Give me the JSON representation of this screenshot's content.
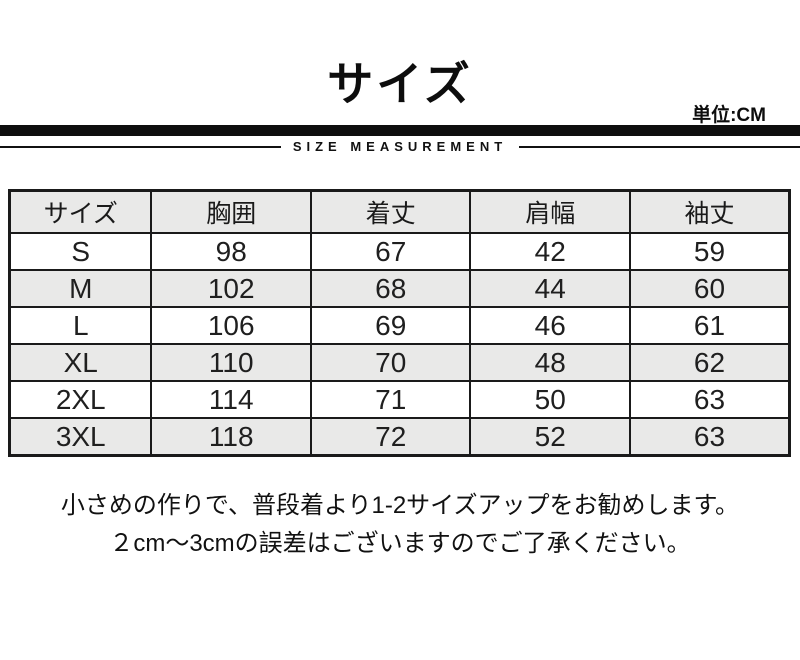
{
  "header": {
    "title": "サイズ",
    "unit_label": "単位:CM",
    "divider_label": "SIZE MEASUREMENT"
  },
  "size_table": {
    "columns": [
      "サイズ",
      "胸囲",
      "着丈",
      "肩幅",
      "袖丈"
    ],
    "rows": [
      {
        "size": "S",
        "values": [
          "98",
          "67",
          "42",
          "59"
        ]
      },
      {
        "size": "M",
        "values": [
          "102",
          "68",
          "44",
          "60"
        ]
      },
      {
        "size": "L",
        "values": [
          "106",
          "69",
          "46",
          "61"
        ]
      },
      {
        "size": "XL",
        "values": [
          "110",
          "70",
          "48",
          "62"
        ]
      },
      {
        "size": "2XL",
        "values": [
          "114",
          "71",
          "50",
          "63"
        ]
      },
      {
        "size": "3XL",
        "values": [
          "118",
          "72",
          "52",
          "63"
        ]
      }
    ]
  },
  "notes": [
    "小さめの作りで、普段着より1-2サイズアップをお勧めします。",
    "２cm～3cmの誤差はございますのでご了承ください。"
  ],
  "colors": {
    "background": "#ffffff",
    "bar": "#0e0e0e",
    "border": "#1a1a1a",
    "row_alt_bg": "#e9e9e8",
    "text": "#111111"
  }
}
